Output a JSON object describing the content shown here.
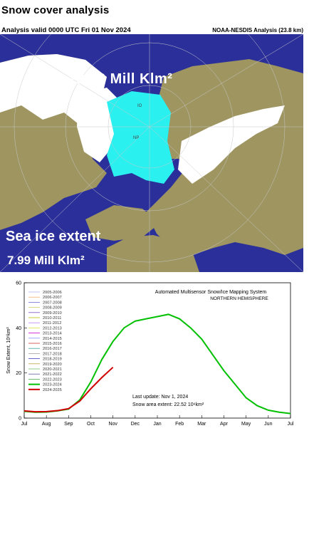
{
  "header": {
    "title": "Snow cover analysis",
    "analysis_valid": "Analysis valid 0000 UTC   Fri 01 Nov 2024",
    "credit": "NOAA-NESDIS Analysis (23.8 km)"
  },
  "map": {
    "snow_total": "22.52 Mill Klm²",
    "sea_ice_label": "Sea ice extent",
    "sea_ice_value": "7.99 Mill Klm²",
    "labels": [
      "IO",
      "NP"
    ],
    "colors": {
      "ocean": "#2b2f9a",
      "land": "#9e9561",
      "snow": "#ffffff",
      "sea_ice": "#2bf0f0"
    }
  },
  "chart_data": {
    "type": "line",
    "title": "Automated  Multisensor Snow/Ice Mapping System",
    "subtitle": "NORTHERN HEMISPHERE",
    "ylabel": "Snow Extent, 10⁶km²",
    "xlabel": "",
    "ylim": [
      0,
      60
    ],
    "yticks": [
      0,
      20,
      40,
      60
    ],
    "categories": [
      "Jul",
      "Aug",
      "Sep",
      "Oct",
      "Nov",
      "Dec",
      "Jan",
      "Feb",
      "Mar",
      "Apr",
      "May",
      "Jun",
      "Jul"
    ],
    "legend": [
      "2005-2006",
      "2006-2007",
      "2007-2008",
      "2008-2009",
      "2009-2010",
      "2010-2011",
      "2011-2012",
      "2012-2013",
      "2013-2014",
      "2014-2015",
      "2015-2016",
      "2016-2017",
      "2017-2018",
      "2018-2019",
      "2019-2020",
      "2020-2021",
      "2021-2022",
      "2022-2023",
      "2023-2024",
      "2024-2025"
    ],
    "legend_colors": [
      "#b0b0f0",
      "#f0b070",
      "#7070d0",
      "#d0d070",
      "#8050c0",
      "#c0c000",
      "#c080f0",
      "#e0e040",
      "#d000d0",
      "#9090ff",
      "#c04040",
      "#40a0a0",
      "#a0a0a0",
      "#4040c0",
      "#c0a040",
      "#70c070",
      "#6060a0",
      "#50b050",
      "#00c000",
      "#d00000"
    ],
    "annotations": [
      "Last update:  Nov  1, 2024",
      "Snow area extent:  22.52  10⁶km²"
    ],
    "series": [
      {
        "name": "2023-2024",
        "x": [
          0,
          0.5,
          1,
          1.5,
          2,
          2.5,
          3,
          3.5,
          4,
          4.5,
          5,
          5.5,
          6,
          6.5,
          7,
          7.5,
          8,
          8.5,
          9,
          9.5,
          10,
          10.5,
          11,
          11.5,
          12
        ],
        "values": [
          3,
          2.6,
          2.7,
          3.2,
          4,
          8,
          16,
          26,
          34,
          40,
          43,
          44,
          45,
          46,
          44,
          40,
          35,
          28,
          21,
          15,
          9,
          5.5,
          3.5,
          2.6,
          2
        ]
      },
      {
        "name": "2024-2025",
        "x": [
          0,
          0.5,
          1,
          1.5,
          2,
          2.5,
          3,
          3.5,
          4
        ],
        "values": [
          3.2,
          2.8,
          2.9,
          3.3,
          4.2,
          7.5,
          13,
          18,
          22.52
        ]
      }
    ]
  }
}
